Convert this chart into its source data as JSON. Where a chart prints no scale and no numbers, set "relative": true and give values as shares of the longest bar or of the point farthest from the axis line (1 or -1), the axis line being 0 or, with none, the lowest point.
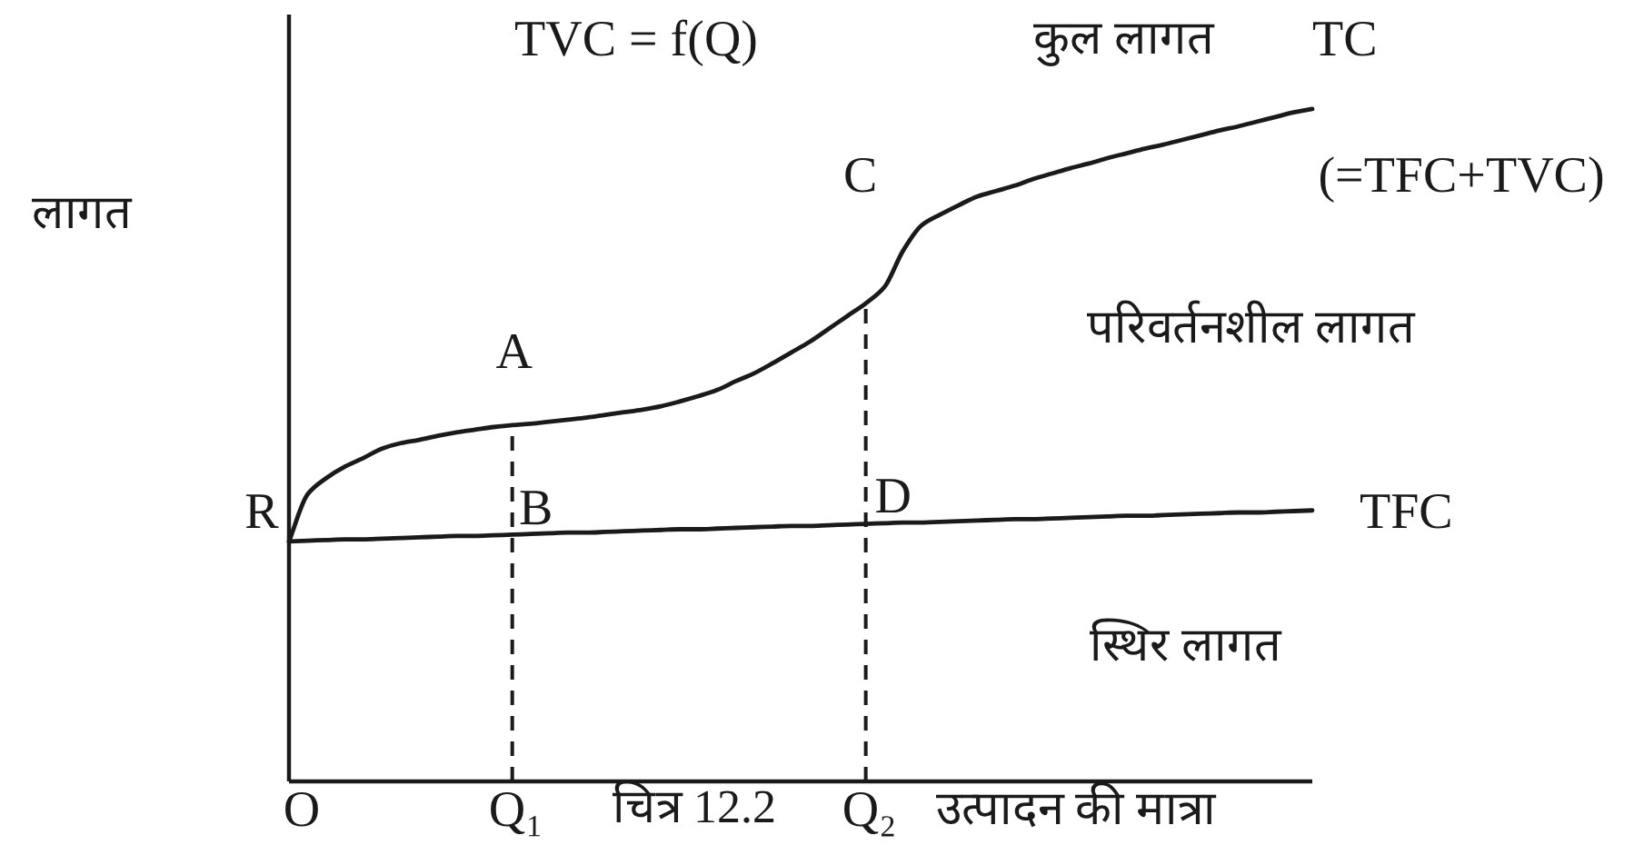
{
  "chart_data": {
    "type": "line",
    "relative": true,
    "xlabel": "उत्पादन की मात्रा",
    "ylabel": "लागत",
    "categories": [
      "O",
      null,
      null,
      null,
      null,
      null,
      null,
      null,
      null,
      null,
      null,
      null,
      "Q₁",
      null,
      null,
      null,
      null,
      null,
      null,
      null,
      null,
      null,
      null,
      null,
      null,
      null,
      null,
      null,
      null,
      null,
      null,
      "Q₂",
      null,
      null,
      null,
      null,
      null,
      null,
      null,
      null,
      null,
      null,
      null,
      null,
      null,
      null,
      null,
      null,
      null,
      null,
      null,
      null,
      null,
      null,
      null,
      null
    ],
    "series": [
      {
        "name": "TC",
        "color": "#1a1a1a",
        "values": [
          0.357,
          0.427,
          0.451,
          0.468,
          0.481,
          0.495,
          0.503,
          0.508,
          0.514,
          0.519,
          0.523,
          0.527,
          0.53,
          0.532,
          0.535,
          0.538,
          0.541,
          0.545,
          0.549,
          0.553,
          0.558,
          0.565,
          0.573,
          0.582,
          0.595,
          0.607,
          0.622,
          0.638,
          0.654,
          0.673,
          0.692,
          0.711,
          0.735,
          0.789,
          0.827,
          0.843,
          0.857,
          0.87,
          0.878,
          0.886,
          0.896,
          0.904,
          0.912,
          0.919,
          0.927,
          0.934,
          0.941,
          0.947,
          0.954,
          0.961,
          0.968,
          0.974,
          0.981,
          0.988,
          0.995,
          1
        ]
      },
      {
        "name": "TFC",
        "color": "#1a1a1a",
        "values": [
          0.357,
          0.358,
          0.359,
          0.36,
          0.36,
          0.361,
          0.362,
          0.363,
          0.364,
          0.365,
          0.365,
          0.366,
          0.367,
          0.368,
          0.369,
          0.37,
          0.37,
          0.371,
          0.372,
          0.373,
          0.374,
          0.375,
          0.375,
          0.376,
          0.377,
          0.378,
          0.379,
          0.38,
          0.38,
          0.381,
          0.382,
          0.383,
          0.384,
          0.385,
          0.385,
          0.386,
          0.387,
          0.388,
          0.389,
          0.39,
          0.39,
          0.391,
          0.392,
          0.393,
          0.394,
          0.395,
          0.395,
          0.396,
          0.397,
          0.398,
          0.399,
          0.4,
          0.4,
          0.401,
          0.402,
          0.403
        ]
      }
    ],
    "ref_lines": [
      {
        "axis": "x",
        "value": "Q₁",
        "line_style": "dashed",
        "color": "#1a1a1a"
      },
      {
        "axis": "x",
        "value": "Q₂",
        "line_style": "dashed",
        "color": "#1a1a1a"
      }
    ],
    "annotations": [
      "TVC = f(Q)",
      "कुल लागत",
      "(=TFC+TVC)",
      "परिवर्तनशील लागत",
      "स्थिर लागत",
      "चित्र 12.2",
      {
        "text": "A",
        "x": "Q₁",
        "y": 0.53
      },
      {
        "text": "B",
        "x": "Q₁",
        "y": 0.367
      },
      {
        "text": "C",
        "x": "Q₂",
        "y": 0.711
      },
      {
        "text": "D",
        "x": "Q₂",
        "y": 0.383
      },
      {
        "text": "R",
        "x": "O",
        "y": 0.357
      }
    ]
  }
}
